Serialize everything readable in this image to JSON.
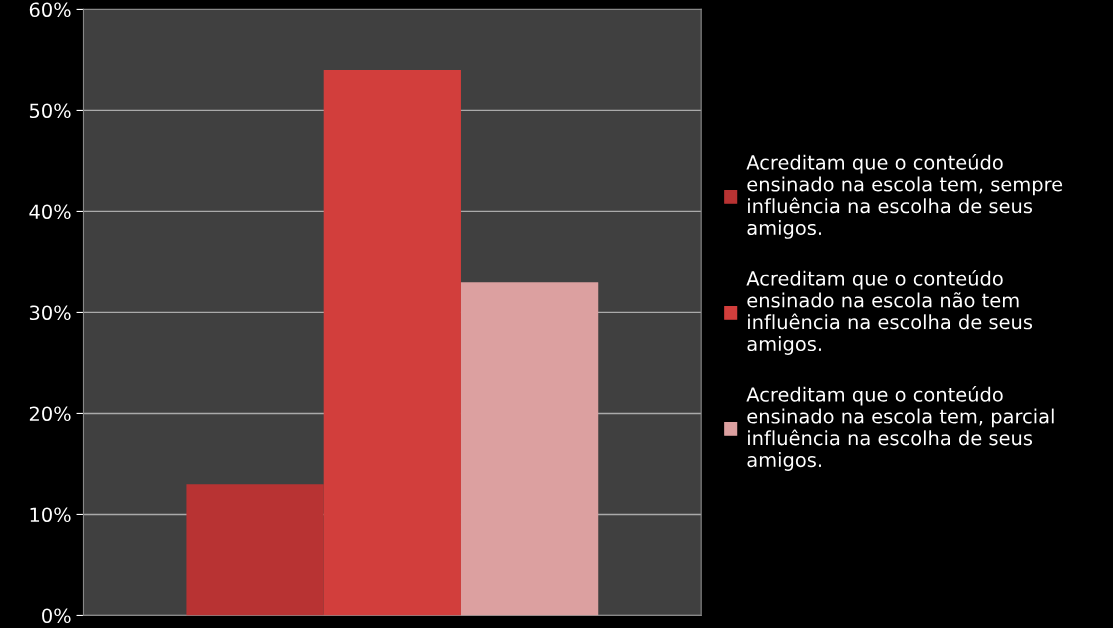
{
  "chart_data": {
    "type": "bar",
    "categories": [
      null
    ],
    "series": [
      {
        "name": "Acreditam que o conteúdo ensinado na escola tem, sempre influência na escolha de seus amigos.",
        "color": "#b83333",
        "values": [
          13
        ]
      },
      {
        "name": "Acreditam que o conteúdo ensinado na escola não tem influência na escolha de seus amigos.",
        "color": "#d23e3c",
        "values": [
          54
        ]
      },
      {
        "name": "Acreditam que o conteúdo ensinado na escola tem, parcial influência na escolha de seus amigos.",
        "color": "#dca0a0",
        "values": [
          33
        ]
      }
    ],
    "ylim": [
      0,
      60
    ],
    "yticks": [
      {
        "value": 0,
        "label": "0%"
      },
      {
        "value": 10,
        "label": "10%"
      },
      {
        "value": 20,
        "label": "20%"
      },
      {
        "value": 30,
        "label": "30%"
      },
      {
        "value": 40,
        "label": "40%"
      },
      {
        "value": 50,
        "label": "50%"
      },
      {
        "value": 60,
        "label": "60%"
      }
    ],
    "grid": "y",
    "legend": "right"
  }
}
